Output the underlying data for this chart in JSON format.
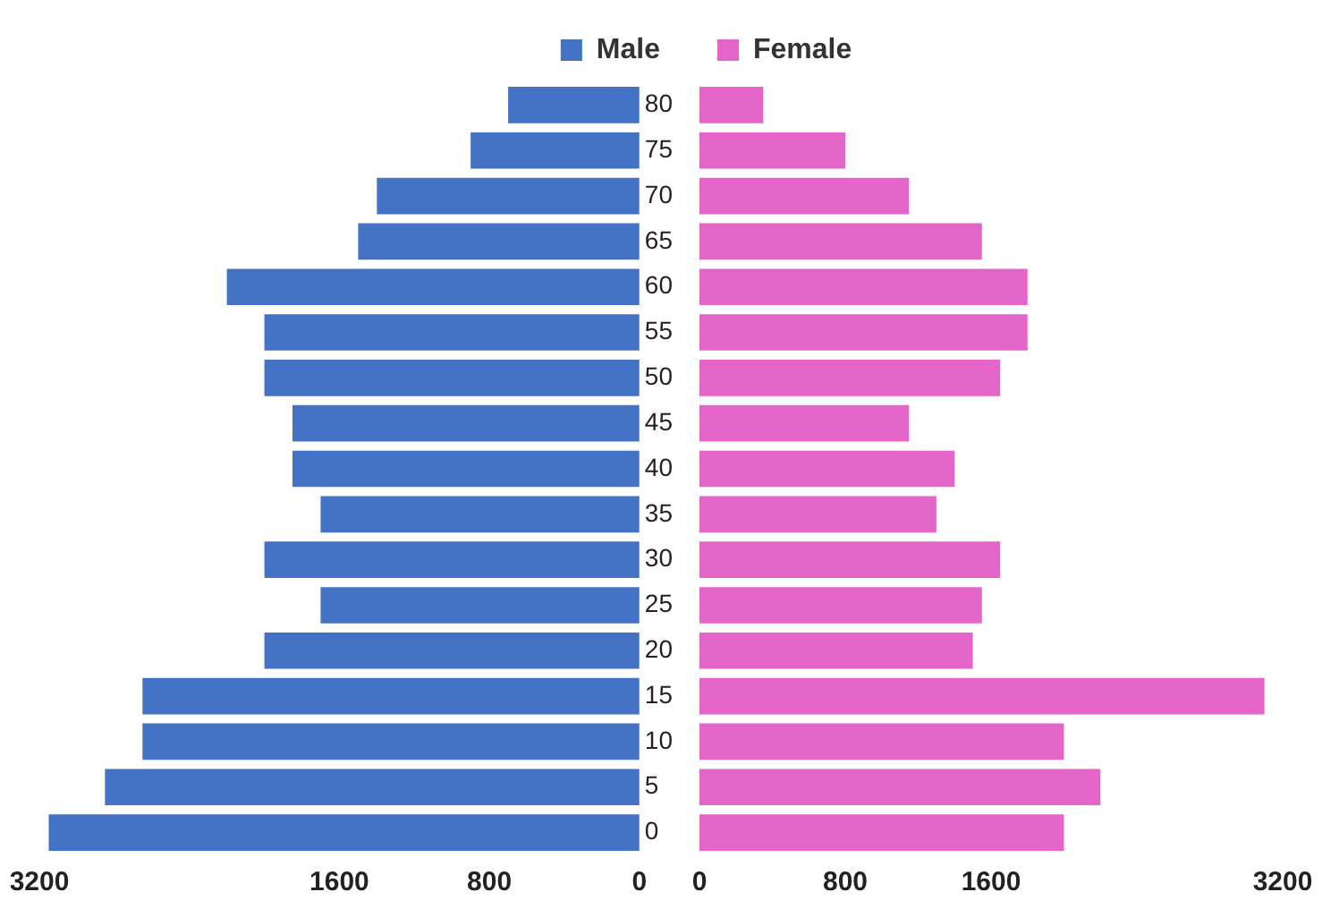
{
  "chart_data": [
    {
      "type": "bar",
      "orientation": "horizontal",
      "categories": [
        "80",
        "75",
        "70",
        "65",
        "60",
        "55",
        "50",
        "45",
        "40",
        "35",
        "30",
        "25",
        "20",
        "15",
        "10",
        "5",
        "0"
      ],
      "series": [
        {
          "name": "Male",
          "color": "#4472c4",
          "values": [
            700,
            900,
            1400,
            1500,
            2200,
            2000,
            2000,
            1850,
            1850,
            1700,
            2000,
            1700,
            2000,
            2650,
            2650,
            2850,
            3150
          ]
        }
      ],
      "xlim": [
        3200,
        0
      ],
      "xticks": [
        3200,
        1600,
        800,
        0
      ],
      "grid": false,
      "legend": "top"
    },
    {
      "type": "bar",
      "orientation": "horizontal",
      "categories": [
        "80",
        "75",
        "70",
        "65",
        "60",
        "55",
        "50",
        "45",
        "40",
        "35",
        "30",
        "25",
        "20",
        "15",
        "10",
        "5",
        "0"
      ],
      "series": [
        {
          "name": "Female",
          "color": "#e465c8",
          "values": [
            350,
            800,
            1150,
            1550,
            1800,
            1800,
            1650,
            1150,
            1400,
            1300,
            1650,
            1550,
            1500,
            3100,
            2000,
            2200,
            2000
          ]
        }
      ],
      "xlim": [
        0,
        3200
      ],
      "xticks": [
        0,
        800,
        1600,
        3200
      ],
      "grid": false,
      "legend": "top",
      "tick_labels": "x"
    }
  ]
}
